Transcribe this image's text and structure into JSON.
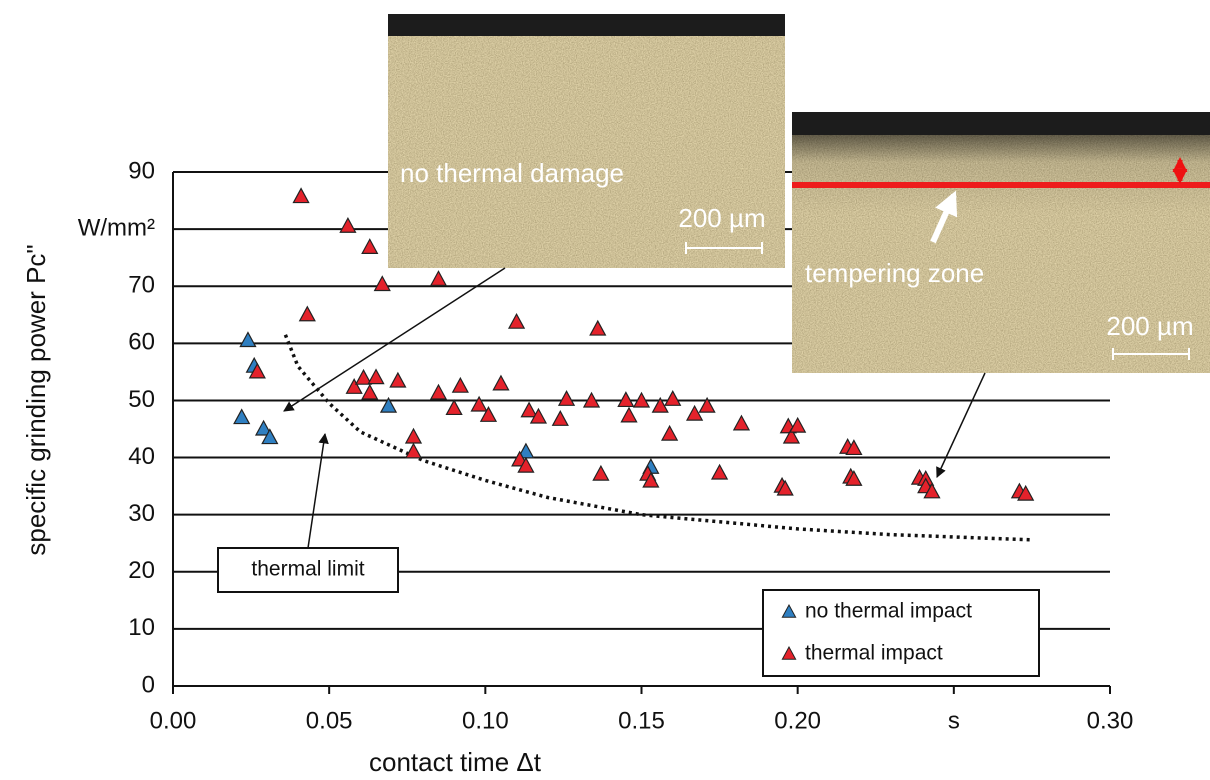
{
  "chart_data": {
    "type": "scatter",
    "x_label": "contact time Δt",
    "y_label": "specific grinding power Pc\"",
    "xlim": [
      0,
      0.3
    ],
    "ylim": [
      0,
      90
    ],
    "xticks": [
      {
        "value": 0,
        "label": "0.00"
      },
      {
        "value": 0.05,
        "label": "0.05"
      },
      {
        "value": 0.1,
        "label": "0.10"
      },
      {
        "value": 0.15,
        "label": "0.15"
      },
      {
        "value": 0.2,
        "label": "0.20"
      },
      {
        "value": 0.25,
        "label": "s"
      },
      {
        "value": 0.3,
        "label": "0.30"
      }
    ],
    "yticks": [
      0,
      10,
      20,
      30,
      40,
      50,
      60,
      70,
      {
        "value": 80,
        "label": "W/mm²"
      },
      90
    ],
    "grid": true,
    "legend": "bottom-right",
    "series": [
      {
        "name": "no thermal impact",
        "color": "#2f7fc1",
        "x": [
          0.024,
          0.026,
          0.022,
          0.029,
          0.031,
          0.069,
          0.113,
          0.153
        ],
        "values": [
          60.5,
          56,
          47,
          45,
          43.5,
          49,
          41,
          38.3
        ]
      },
      {
        "name": "thermal impact",
        "color": "#e4222b",
        "x": [
          0.041,
          0.056,
          0.063,
          0.067,
          0.085,
          0.043,
          0.11,
          0.136,
          0.027,
          0.058,
          0.061,
          0.063,
          0.065,
          0.072,
          0.085,
          0.092,
          0.09,
          0.098,
          0.101,
          0.105,
          0.114,
          0.117,
          0.124,
          0.126,
          0.134,
          0.145,
          0.146,
          0.15,
          0.156,
          0.16,
          0.159,
          0.167,
          0.171,
          0.077,
          0.077,
          0.111,
          0.113,
          0.137,
          0.152,
          0.153,
          0.175,
          0.182,
          0.197,
          0.198,
          0.2,
          0.195,
          0.196,
          0.216,
          0.218,
          0.217,
          0.218,
          0.239,
          0.241,
          0.241,
          0.243,
          0.271,
          0.273
        ],
        "values": [
          85.7,
          80.5,
          76.8,
          70.3,
          71.2,
          65,
          63.7,
          62.5,
          55,
          52.3,
          53.9,
          51.3,
          54,
          53.4,
          51.3,
          52.5,
          48.6,
          49.2,
          47.4,
          52.9,
          48.2,
          47.1,
          46.7,
          50.2,
          49.9,
          50,
          47.3,
          49.9,
          49,
          50.2,
          44.1,
          47.6,
          49,
          43.6,
          41,
          39.6,
          38.5,
          37.1,
          37.1,
          35.9,
          37.3,
          45.9,
          45.4,
          43.6,
          45.5,
          35,
          34.5,
          41.8,
          41.6,
          36.6,
          36.2,
          36.4,
          36.2,
          34.9,
          34,
          34,
          33.6
        ]
      }
    ],
    "thermal_limit_curve": {
      "x": [
        0.036,
        0.04,
        0.05,
        0.06,
        0.08,
        0.1,
        0.12,
        0.15,
        0.18,
        0.2,
        0.23,
        0.275
      ],
      "y": [
        61.5,
        56,
        49.5,
        44.5,
        39.5,
        36,
        33,
        30,
        28.5,
        27.5,
        26.5,
        25.6
      ]
    },
    "annotations": {
      "thermal_limit": "thermal limit",
      "inset_left_caption": "no thermal damage",
      "inset_left_scale": "200 µm",
      "inset_right_caption": "tempering zone",
      "inset_right_scale": "200 µm"
    }
  }
}
